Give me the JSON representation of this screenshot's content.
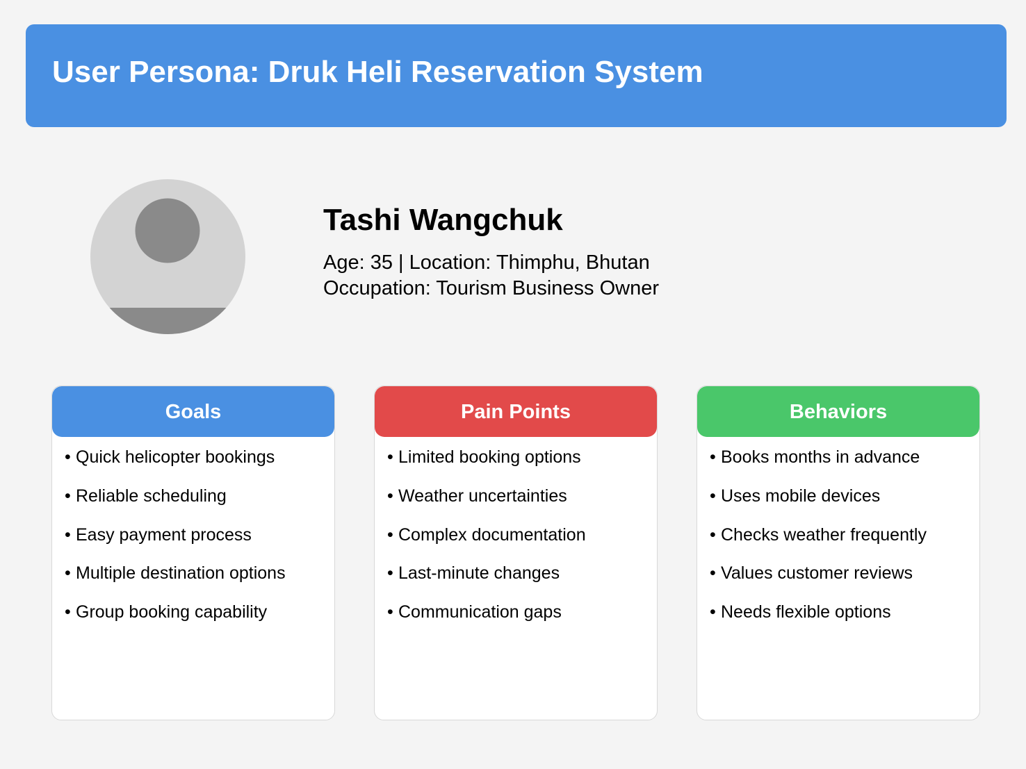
{
  "header": {
    "title": "User Persona: Druk Heli Reservation System",
    "background_color": "#4a90e2"
  },
  "persona": {
    "avatar_icon": "user-avatar-icon",
    "name": "Tashi Wangchuk",
    "meta_line_1": "Age: 35 | Location: Thimphu, Bhutan",
    "meta_line_2": "Occupation: Tourism Business Owner"
  },
  "cards": [
    {
      "title": "Goals",
      "color": "#4a90e2",
      "items": [
        "Quick helicopter bookings",
        "Reliable scheduling",
        "Easy payment process",
        "Multiple destination options",
        "Group booking capability"
      ]
    },
    {
      "title": "Pain Points",
      "color": "#e24a4a",
      "items": [
        "Limited booking options",
        "Weather uncertainties",
        "Complex documentation",
        "Last-minute changes",
        "Communication gaps"
      ]
    },
    {
      "title": "Behaviors",
      "color": "#4ac76a",
      "items": [
        "Books months in advance",
        "Uses mobile devices",
        "Checks weather frequently",
        "Values customer reviews",
        "Needs flexible options"
      ]
    }
  ]
}
